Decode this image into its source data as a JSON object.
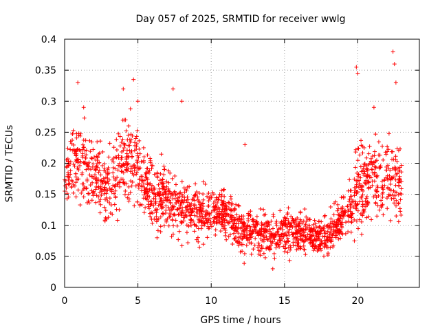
{
  "chart_data": {
    "type": "scatter",
    "title": "Day 057 of 2025, SRMTID for receiver wwlg",
    "xlabel": "GPS time / hours",
    "ylabel": "SRMTID / TECUs",
    "xlim": [
      0,
      24.2
    ],
    "ylim": [
      0,
      0.4
    ],
    "x_ticks": [
      0,
      5,
      10,
      15,
      20
    ],
    "x_tick_labels": [
      "0",
      "5",
      "10",
      "15",
      "20"
    ],
    "y_ticks": [
      0,
      0.05,
      0.1,
      0.15,
      0.2,
      0.25,
      0.3,
      0.35,
      0.4
    ],
    "y_tick_labels": [
      "0",
      "0.05",
      "0.1",
      "0.15",
      "0.2",
      "0.25",
      "0.3",
      "0.35",
      "0.4"
    ],
    "grid": true,
    "marker": "+",
    "marker_color": "#ff0000",
    "series": [
      {
        "name": "SRMTID",
        "x_range": [
          0,
          23
        ],
        "trend_hours": [
          0,
          1,
          2,
          3,
          4,
          5,
          6,
          7,
          8,
          9,
          10,
          11,
          12,
          13,
          14,
          15,
          16,
          17,
          18,
          19,
          20,
          21,
          22,
          23
        ],
        "trend_values": [
          0.19,
          0.21,
          0.17,
          0.16,
          0.2,
          0.2,
          0.15,
          0.14,
          0.13,
          0.12,
          0.12,
          0.12,
          0.09,
          0.09,
          0.08,
          0.09,
          0.09,
          0.08,
          0.09,
          0.11,
          0.16,
          0.18,
          0.17,
          0.17
        ],
        "spread_values": [
          0.04,
          0.055,
          0.05,
          0.05,
          0.06,
          0.06,
          0.045,
          0.045,
          0.04,
          0.035,
          0.035,
          0.035,
          0.03,
          0.03,
          0.03,
          0.03,
          0.03,
          0.025,
          0.03,
          0.03,
          0.06,
          0.05,
          0.06,
          0.05
        ],
        "peak_points": [
          {
            "x": 0.9,
            "y": 0.33
          },
          {
            "x": 1.3,
            "y": 0.29
          },
          {
            "x": 4.0,
            "y": 0.32
          },
          {
            "x": 4.7,
            "y": 0.335
          },
          {
            "x": 5.0,
            "y": 0.3
          },
          {
            "x": 7.4,
            "y": 0.32
          },
          {
            "x": 8.0,
            "y": 0.3
          },
          {
            "x": 12.3,
            "y": 0.23
          },
          {
            "x": 14.2,
            "y": 0.03
          },
          {
            "x": 19.9,
            "y": 0.355
          },
          {
            "x": 20.0,
            "y": 0.345
          },
          {
            "x": 21.1,
            "y": 0.29
          },
          {
            "x": 22.4,
            "y": 0.38
          },
          {
            "x": 22.5,
            "y": 0.36
          },
          {
            "x": 22.6,
            "y": 0.33
          }
        ]
      }
    ]
  }
}
